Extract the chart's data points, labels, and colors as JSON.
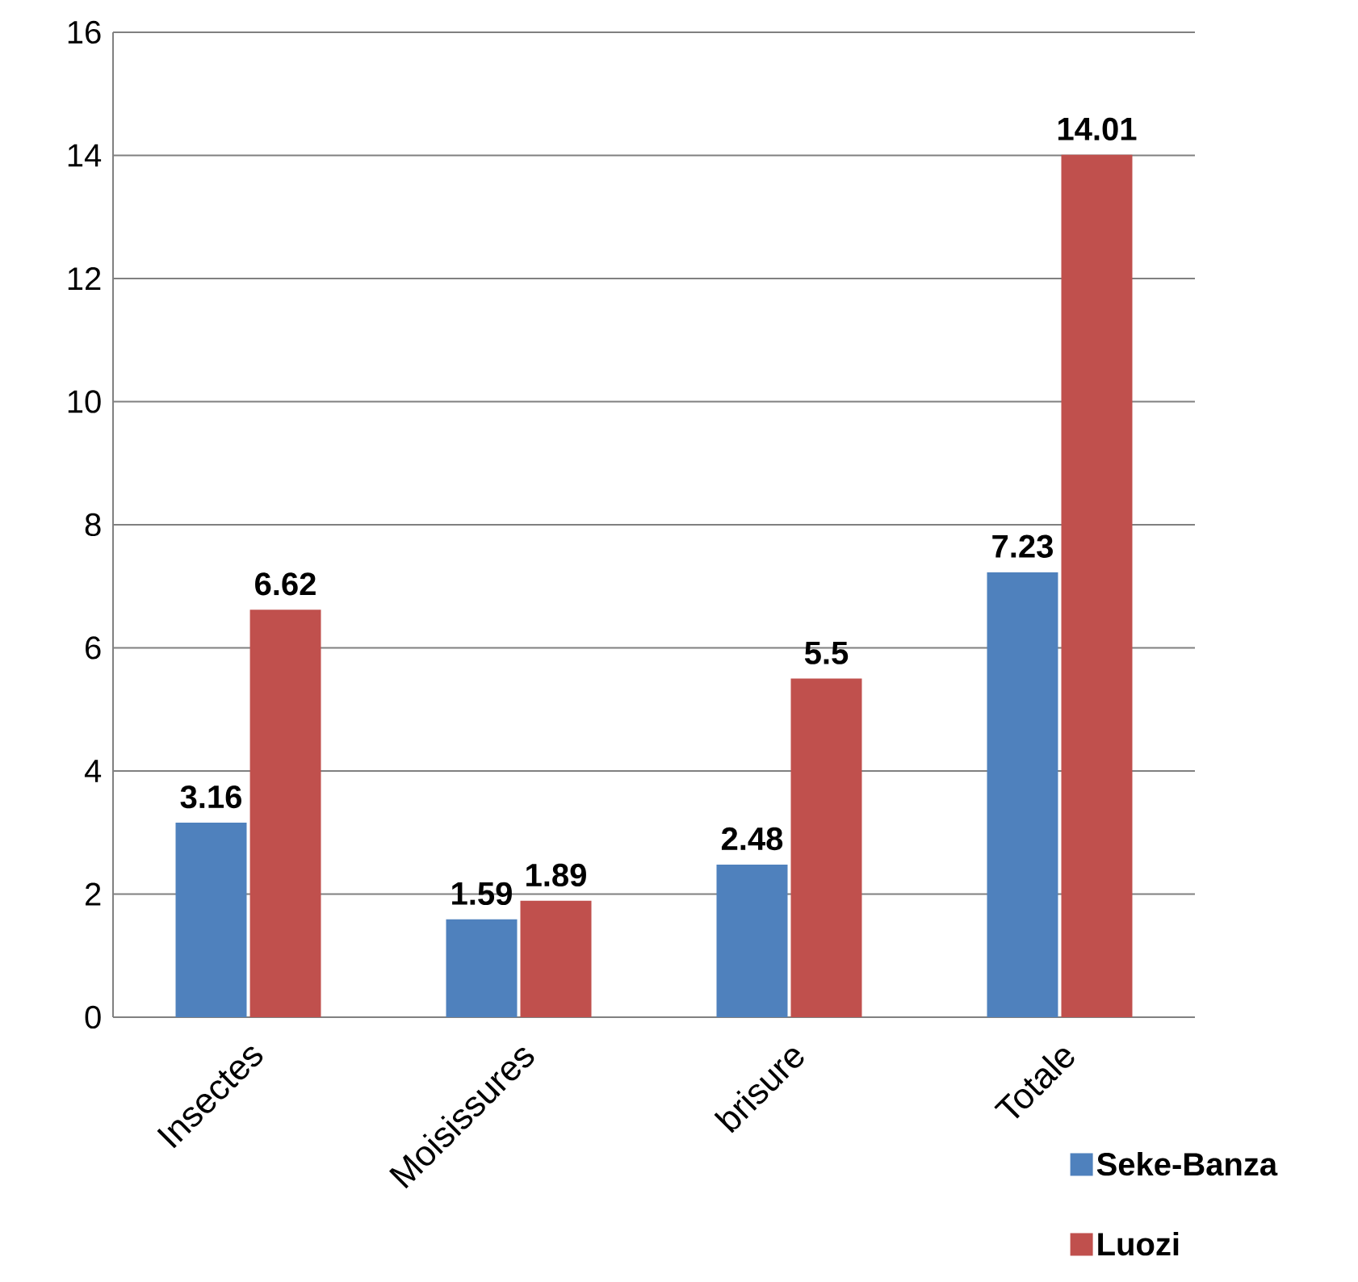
{
  "chart_data": {
    "type": "bar",
    "categories": [
      "Insectes",
      "Moisissures",
      "brisure",
      "Totale"
    ],
    "series": [
      {
        "name": "Seke-Banza",
        "color": "#4f81bd",
        "values": [
          3.16,
          1.59,
          2.48,
          7.23
        ]
      },
      {
        "name": "Luozi",
        "color": "#c0504d",
        "values": [
          6.62,
          1.89,
          5.5,
          14.01
        ]
      }
    ],
    "ylim": [
      0,
      16
    ],
    "yticks": [
      0,
      2,
      4,
      6,
      8,
      10,
      12,
      14,
      16
    ],
    "grid": "y",
    "legend": "bottom right",
    "data_labels": true
  }
}
